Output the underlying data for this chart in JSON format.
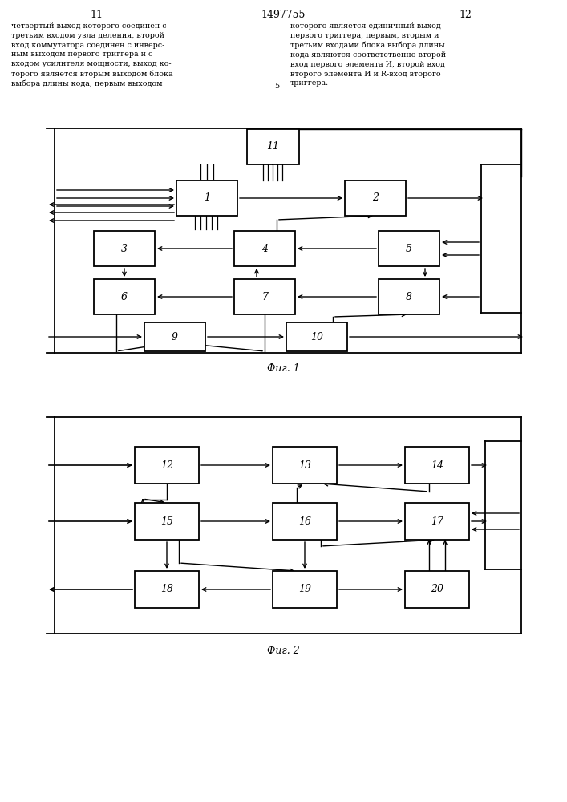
{
  "title_page": "1497755",
  "page_left": "11",
  "page_right": "12",
  "text_left": "четвертый выход которого соединен с\nтретьим входом узла деления, второй\nвход коммутатора соединен с инверс-\nным выходом первого триггера и с\nвходом усилителя мощности, выход ко-\nторого является вторым выходом блока\nвыбора длины кода, первым выходом",
  "text_right": "которого является единичный выход\nпервого триггера, первым, вторым и\nтретьим входами блока выбора длины\nкода являются соответственно второй\nвход первого элемента И, второй вход\nвторого элемента И и R-вход второго\nтриггера.",
  "text_number": "5",
  "fig1_label": "Фиг. 1",
  "fig2_label": "Фиг. 2"
}
